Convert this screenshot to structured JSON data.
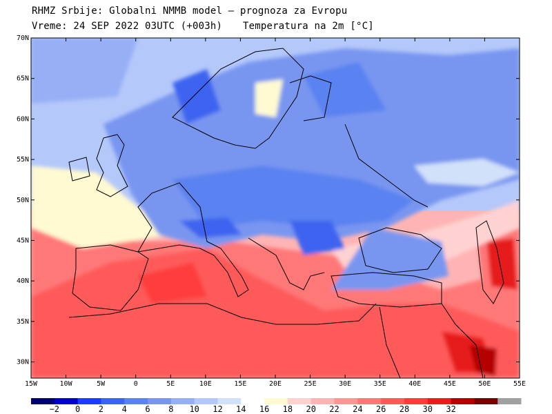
{
  "header": {
    "line1": "RHMZ Srbije: Globalni NMMB model — prognoza za Evropu",
    "line2": "Vreme: 24 SEP 2022 03UTC (+003h)",
    "field": "Temperatura na 2m [°C]"
  },
  "map": {
    "lon_range": [
      -15,
      55
    ],
    "lat_range": [
      28,
      70
    ],
    "lat_ticks": [
      "30N",
      "35N",
      "40N",
      "45N",
      "50N",
      "55N",
      "60N",
      "65N",
      "70N"
    ],
    "lat_values": [
      30,
      35,
      40,
      45,
      50,
      55,
      60,
      65,
      70
    ],
    "lon_ticks": [
      "15W",
      "10W",
      "5W",
      "0",
      "5E",
      "10E",
      "15E",
      "20E",
      "25E",
      "30E",
      "35E",
      "40E",
      "45E",
      "50E",
      "55E"
    ],
    "lon_values": [
      -15,
      -10,
      -5,
      0,
      5,
      10,
      15,
      20,
      25,
      30,
      35,
      40,
      45,
      50,
      55
    ]
  },
  "colorbar": {
    "colors": [
      "#00006e",
      "#0000c8",
      "#1e3cff",
      "#3c64f0",
      "#5a82f0",
      "#7896f0",
      "#96aff5",
      "#b4c8fa",
      "#d2e1fa",
      "#ffffff",
      "#fffad2",
      "#ffd2d2",
      "#ffb4b4",
      "#ff9696",
      "#ff7878",
      "#ff5a5a",
      "#ff3c3c",
      "#e61e1e",
      "#b40000",
      "#780000",
      "#a0a0a0"
    ],
    "labels": [
      "−2",
      "0",
      "2",
      "4",
      "6",
      "8",
      "10",
      "12",
      "14",
      "16",
      "18",
      "20",
      "22",
      "24",
      "26",
      "28",
      "30",
      "32"
    ]
  }
}
